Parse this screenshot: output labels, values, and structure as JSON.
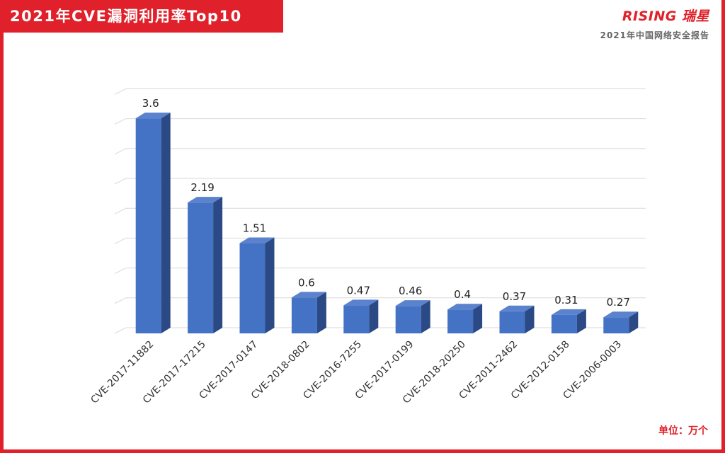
{
  "header": {
    "title": "2021年CVE漏洞利用率Top10"
  },
  "brand": {
    "logo_text": "RISING 瑞星",
    "subtitle": "2021年中国网络安全报告"
  },
  "unit_note": "单位：万个",
  "colors": {
    "accent": "#e0202a",
    "bar_front": "#4472c4",
    "bar_top": "#5b82cc",
    "bar_side": "#2b4a85",
    "grid": "#d9d9d9"
  },
  "chart_data": {
    "type": "bar",
    "title": "2021年CVE漏洞利用率Top10",
    "xlabel": "",
    "ylabel": "",
    "unit": "单位：万个",
    "categories": [
      "CVE-2017-11882",
      "CVE-2017-17215",
      "CVE-2017-0147",
      "CVE-2018-0802",
      "CVE-2016-7255",
      "CVE-2017-0199",
      "CVE-2018-20250",
      "CVE-2011-2462",
      "CVE-2012-0158",
      "CVE-2006-0003"
    ],
    "values": [
      3.6,
      2.19,
      1.51,
      0.6,
      0.47,
      0.46,
      0.4,
      0.37,
      0.31,
      0.27
    ],
    "data_labels": [
      "3.6",
      "2.19",
      "1.51",
      "0.6",
      "0.47",
      "0.46",
      "0.4",
      "0.37",
      "0.31",
      "0.27"
    ],
    "ylim": [
      0,
      4
    ],
    "grid": true,
    "three_d": true
  }
}
